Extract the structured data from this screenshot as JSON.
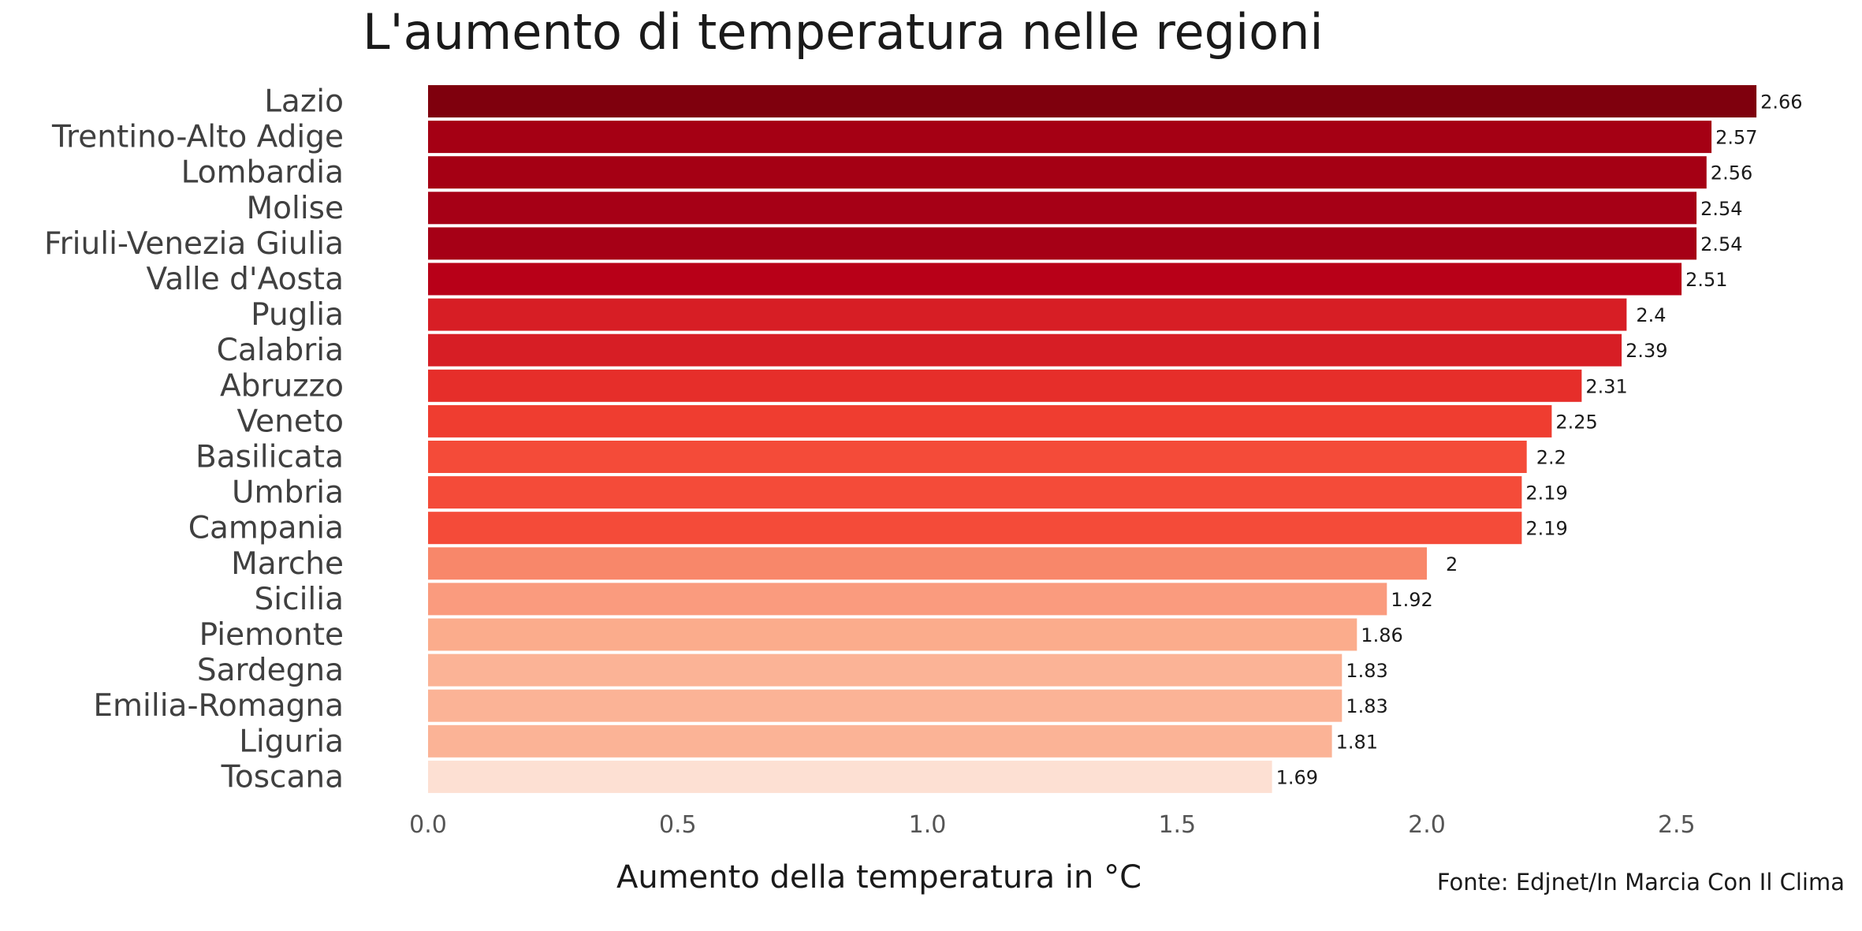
{
  "chart_data": {
    "type": "bar",
    "orientation": "horizontal",
    "title": "L'aumento di temperatura nelle regioni",
    "xlabel": "Aumento della temperatura in °C",
    "ylabel": "",
    "caption": "Fonte: Edjnet/In Marcia Con Il Clima",
    "xlim": [
      0,
      2.75
    ],
    "x_ticks": [
      "0.0",
      "0.5",
      "1.0",
      "1.5",
      "2.0",
      "2.5"
    ],
    "grid": false,
    "legend": "none",
    "categories": [
      "Lazio",
      "Trentino-Alto Adige",
      "Lombardia",
      "Molise",
      "Friuli-Venezia Giulia",
      "Valle d'Aosta",
      "Puglia",
      "Calabria",
      "Abruzzo",
      "Veneto",
      "Basilicata",
      "Umbria",
      "Campania",
      "Marche",
      "Sicilia",
      "Piemonte",
      "Sardegna",
      "Emilia-Romagna",
      "Liguria",
      "Toscana"
    ],
    "values": [
      2.66,
      2.57,
      2.56,
      2.54,
      2.54,
      2.51,
      2.4,
      2.39,
      2.31,
      2.25,
      2.2,
      2.19,
      2.19,
      2,
      1.92,
      1.86,
      1.83,
      1.83,
      1.81,
      1.69
    ],
    "value_labels": [
      "2.66",
      "2.57",
      "2.56",
      "2.54",
      "2.54",
      "2.51",
      "2.4",
      "2.39",
      "2.31",
      "2.25",
      "2.2",
      "2.19",
      "2.19",
      "2",
      "1.92",
      "1.86",
      "1.83",
      "1.83",
      "1.81",
      "1.69"
    ],
    "colors": [
      "#7f000d",
      "#a50014",
      "#a50014",
      "#a60016",
      "#a60016",
      "#b80018",
      "#d71e25",
      "#d71e25",
      "#e62e2a",
      "#ef3d30",
      "#f44b39",
      "#f44b39",
      "#f44b39",
      "#f8876a",
      "#fa9b7e",
      "#fbac8c",
      "#fbb396",
      "#fbb396",
      "#fbb396",
      "#fde0d3"
    ]
  }
}
